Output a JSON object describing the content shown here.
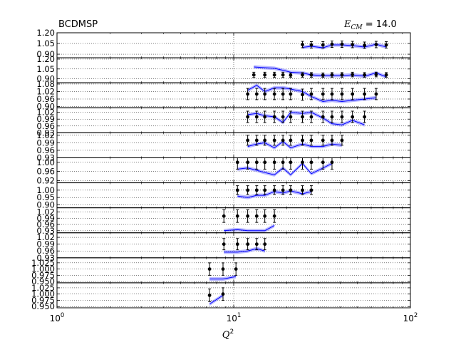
{
  "chart_data": {
    "type": "line",
    "title_left": "BCDMSP",
    "title_right_symbol": "E",
    "title_right_sub": "CM",
    "title_right_value": " = 14.0",
    "xlabel_symbol": "Q",
    "xlabel_sup": "2",
    "xscale": "log",
    "xlim": [
      1,
      100
    ],
    "x_ticks": [
      {
        "value": 1,
        "base": "10",
        "exp": "0"
      },
      {
        "value": 10,
        "base": "10",
        "exp": "1"
      },
      {
        "value": 100,
        "base": "10",
        "exp": "2"
      }
    ],
    "grid": true,
    "colors": {
      "data": "#000000",
      "band": "#8080ff",
      "line": "#0000ff"
    },
    "panels": [
      {
        "ylim": [
          0.85,
          1.2
        ],
        "yticks": [
          "1.20",
          "1.05",
          "0.90"
        ],
        "ytick_values": [
          1.2,
          1.05,
          0.9
        ],
        "x": [
          24.5,
          27.5,
          32,
          36,
          41,
          47,
          55,
          64,
          73
        ],
        "y": [
          1.035,
          1.03,
          1.03,
          1.04,
          1.04,
          1.035,
          1.025,
          1.035,
          1.03
        ],
        "err": [
          0.045,
          0.045,
          0.045,
          0.045,
          0.045,
          0.045,
          0.045,
          0.045,
          0.045
        ],
        "theory_x": [
          24.5,
          27.5,
          32,
          36,
          41,
          47,
          55,
          64,
          73
        ],
        "theory": [
          0.995,
          1.01,
          0.99,
          1.03,
          1.03,
          1.02,
          1.0,
          1.04,
          1.0
        ]
      },
      {
        "ylim": [
          0.84,
          1.22
        ],
        "yticks": [
          "1.20",
          "1.05",
          "0.90"
        ],
        "ytick_values": [
          1.2,
          1.05,
          0.9
        ],
        "x": [
          13,
          15,
          17,
          19,
          21,
          24.5,
          27.5,
          32,
          36,
          41,
          47,
          55,
          64,
          73
        ],
        "y": [
          0.96,
          0.96,
          0.96,
          0.96,
          0.955,
          0.96,
          0.96,
          0.955,
          0.96,
          0.96,
          0.965,
          0.96,
          0.965,
          0.96
        ],
        "err": [
          0.04,
          0.04,
          0.04,
          0.04,
          0.035,
          0.035,
          0.035,
          0.035,
          0.035,
          0.035,
          0.035,
          0.035,
          0.035,
          0.035
        ],
        "theory_x": [
          13,
          15,
          17,
          19,
          21,
          24.5,
          27.5,
          32,
          36,
          41,
          47,
          55,
          64,
          73
        ],
        "theory": [
          1.08,
          1.07,
          1.06,
          1.03,
          1.0,
          0.99,
          0.96,
          0.95,
          0.95,
          0.95,
          0.96,
          0.94,
          0.99,
          0.93
        ]
      },
      {
        "ylim": [
          0.89,
          1.09
        ],
        "yticks": [
          "1.08",
          "1.02",
          "0.96",
          "0.90"
        ],
        "ytick_values": [
          1.08,
          1.02,
          0.96,
          0.9
        ],
        "x": [
          12,
          13.5,
          15,
          17,
          19,
          21,
          24.5,
          27.5,
          32,
          36,
          41,
          47,
          55,
          64
        ],
        "y": [
          1.0,
          1.0,
          1.0,
          1.0,
          1.0,
          1.0,
          0.995,
          1.0,
          1.0,
          1.0,
          1.0,
          1.0,
          1.0,
          1.0
        ],
        "err": [
          0.045,
          0.045,
          0.045,
          0.045,
          0.045,
          0.045,
          0.045,
          0.045,
          0.045,
          0.045,
          0.045,
          0.045,
          0.045,
          0.045
        ],
        "theory_x": [
          12,
          13.5,
          15,
          17,
          19,
          21,
          24.5,
          27.5,
          32,
          36,
          41,
          47,
          55,
          64
        ],
        "theory": [
          1.03,
          1.07,
          1.02,
          1.05,
          1.05,
          1.04,
          1.02,
          0.98,
          0.94,
          0.95,
          0.94,
          0.95,
          0.96,
          0.97
        ]
      },
      {
        "ylim": [
          0.93,
          1.04
        ],
        "yticks": [
          "1.02",
          "0.99",
          "0.96",
          "0.93"
        ],
        "ytick_values": [
          1.02,
          0.99,
          0.96,
          0.93
        ],
        "x": [
          12,
          13.5,
          15,
          17,
          19,
          21,
          24.5,
          27.5,
          32,
          36,
          41,
          47,
          55
        ],
        "y": [
          1.0,
          1.0,
          1.0,
          1.0,
          1.0,
          1.0,
          1.0,
          1.0,
          1.0,
          1.0,
          1.0,
          1.0,
          1.0
        ],
        "err": [
          0.025,
          0.025,
          0.025,
          0.025,
          0.025,
          0.025,
          0.025,
          0.025,
          0.025,
          0.025,
          0.025,
          0.025,
          0.025
        ],
        "theory_x": [
          12,
          13.5,
          15,
          17,
          19,
          21,
          24.5,
          27.5,
          32,
          36,
          41,
          47,
          55
        ],
        "theory": [
          1.01,
          1.015,
          1.005,
          1.0,
          0.975,
          1.02,
          1.015,
          1.02,
          0.995,
          0.97,
          0.965,
          0.985,
          0.965
        ]
      },
      {
        "ylim": [
          0.93,
          1.03
        ],
        "yticks": [
          "1.02",
          "0.99",
          "0.96",
          "0.93"
        ],
        "ytick_values": [
          1.02,
          0.99,
          0.96,
          0.93
        ],
        "x": [
          12,
          13.5,
          15,
          17,
          19,
          21,
          24.5,
          27.5,
          32,
          36,
          41
        ],
        "y": [
          1.0,
          1.0,
          1.0,
          1.0,
          1.0,
          1.0,
          1.0,
          1.0,
          1.0,
          1.0,
          1.0
        ],
        "err": [
          0.02,
          0.02,
          0.02,
          0.02,
          0.02,
          0.02,
          0.02,
          0.02,
          0.02,
          0.02,
          0.02
        ],
        "theory_x": [
          12,
          13.5,
          15,
          17,
          19,
          21,
          24.5,
          27.5,
          32,
          36,
          41
        ],
        "theory": [
          0.975,
          0.985,
          0.99,
          0.97,
          0.995,
          0.97,
          0.985,
          0.975,
          0.975,
          0.985,
          0.98
        ]
      },
      {
        "ylim": [
          0.91,
          1.02
        ],
        "yticks": [
          "1.00",
          "0.96",
          "0.92"
        ],
        "ytick_values": [
          1.0,
          0.96,
          0.92
        ],
        "x": [
          10.5,
          12,
          13.5,
          15,
          17,
          19,
          21,
          24.5,
          27.5,
          32,
          36
        ],
        "y": [
          1.0,
          1.0,
          1.0,
          1.0,
          1.0,
          1.0,
          1.0,
          1.0,
          1.0,
          1.0,
          1.0
        ],
        "err": [
          0.03,
          0.03,
          0.03,
          0.03,
          0.03,
          0.03,
          0.03,
          0.03,
          0.03,
          0.03,
          0.03
        ],
        "theory_x": [
          10.5,
          12,
          13.5,
          15,
          17,
          19,
          21,
          24.5,
          27.5,
          32,
          36
        ],
        "theory": [
          0.97,
          0.975,
          0.965,
          0.955,
          0.945,
          0.975,
          0.945,
          0.995,
          0.95,
          0.975,
          0.995
        ]
      },
      {
        "ylim": [
          0.88,
          1.05
        ],
        "yticks": [
          "1.00",
          "0.95",
          "0.90"
        ],
        "ytick_values": [
          1.0,
          0.95,
          0.9
        ],
        "x": [
          10.5,
          12,
          13.5,
          15,
          17,
          19,
          21,
          24.5,
          27.5
        ],
        "y": [
          1.0,
          1.0,
          1.0,
          1.0,
          1.0,
          1.0,
          1.0,
          1.0,
          1.0
        ],
        "err": [
          0.03,
          0.03,
          0.03,
          0.03,
          0.03,
          0.03,
          0.03,
          0.03,
          0.03
        ],
        "theory_x": [
          10.5,
          12,
          13.5,
          15,
          17,
          19,
          21,
          24.5,
          27.5
        ],
        "theory": [
          0.96,
          0.95,
          0.965,
          0.965,
          0.99,
          0.98,
          0.995,
          0.975,
          0.99
        ]
      },
      {
        "ylim": [
          0.92,
          1.04
        ],
        "yticks": [
          "1.02",
          "0.99",
          "0.96",
          "0.93"
        ],
        "ytick_values": [
          1.02,
          0.99,
          0.96,
          0.93
        ],
        "x": [
          8.8,
          10.5,
          12,
          13.5,
          15,
          17
        ],
        "y": [
          1.0,
          1.0,
          1.0,
          1.0,
          1.0,
          1.0
        ],
        "err": [
          0.03,
          0.03,
          0.03,
          0.03,
          0.03,
          0.03
        ],
        "theory_x": [
          8.8,
          10.5,
          12,
          13.5,
          15,
          17
        ],
        "theory": [
          0.93,
          0.935,
          0.93,
          0.93,
          0.93,
          0.955
        ]
      },
      {
        "ylim": [
          0.93,
          1.04
        ],
        "yticks": [
          "1.02",
          "0.99",
          "0.96",
          "0.93"
        ],
        "ytick_values": [
          1.02,
          0.99,
          0.96,
          0.93
        ],
        "x": [
          8.8,
          10.5,
          12,
          13.5,
          15
        ],
        "y": [
          0.99,
          0.99,
          0.99,
          0.99,
          0.99
        ],
        "err": [
          0.025,
          0.025,
          0.025,
          0.025,
          0.025
        ],
        "theory_x": [
          8.8,
          10.5,
          12,
          13.5,
          15
        ],
        "theory": [
          0.955,
          0.955,
          0.96,
          0.97,
          0.96
        ]
      },
      {
        "ylim": [
          0.945,
          1.045
        ],
        "yticks": [
          "1.025",
          "1.000",
          "0.975",
          "0.950"
        ],
        "ytick_values": [
          1.025,
          1.0,
          0.975,
          0.95
        ],
        "x": [
          7.3,
          8.7,
          10.3
        ],
        "y": [
          1.0,
          1.0,
          1.0
        ],
        "err": [
          0.025,
          0.025,
          0.025
        ],
        "theory_x": [
          7.3,
          8.7,
          10.3
        ],
        "theory": [
          0.96,
          0.96,
          0.97
        ]
      },
      {
        "ylim": [
          0.945,
          1.045
        ],
        "yticks": [
          "1.025",
          "1.000",
          "0.975",
          "0.950"
        ],
        "ytick_values": [
          1.025,
          1.0,
          0.975,
          0.95
        ],
        "x": [
          7.3,
          8.7
        ],
        "y": [
          0.995,
          1.0
        ],
        "err": [
          0.025,
          0.025
        ],
        "theory_x": [
          7.3,
          8.7
        ],
        "theory": [
          0.96,
          0.995
        ]
      }
    ]
  }
}
